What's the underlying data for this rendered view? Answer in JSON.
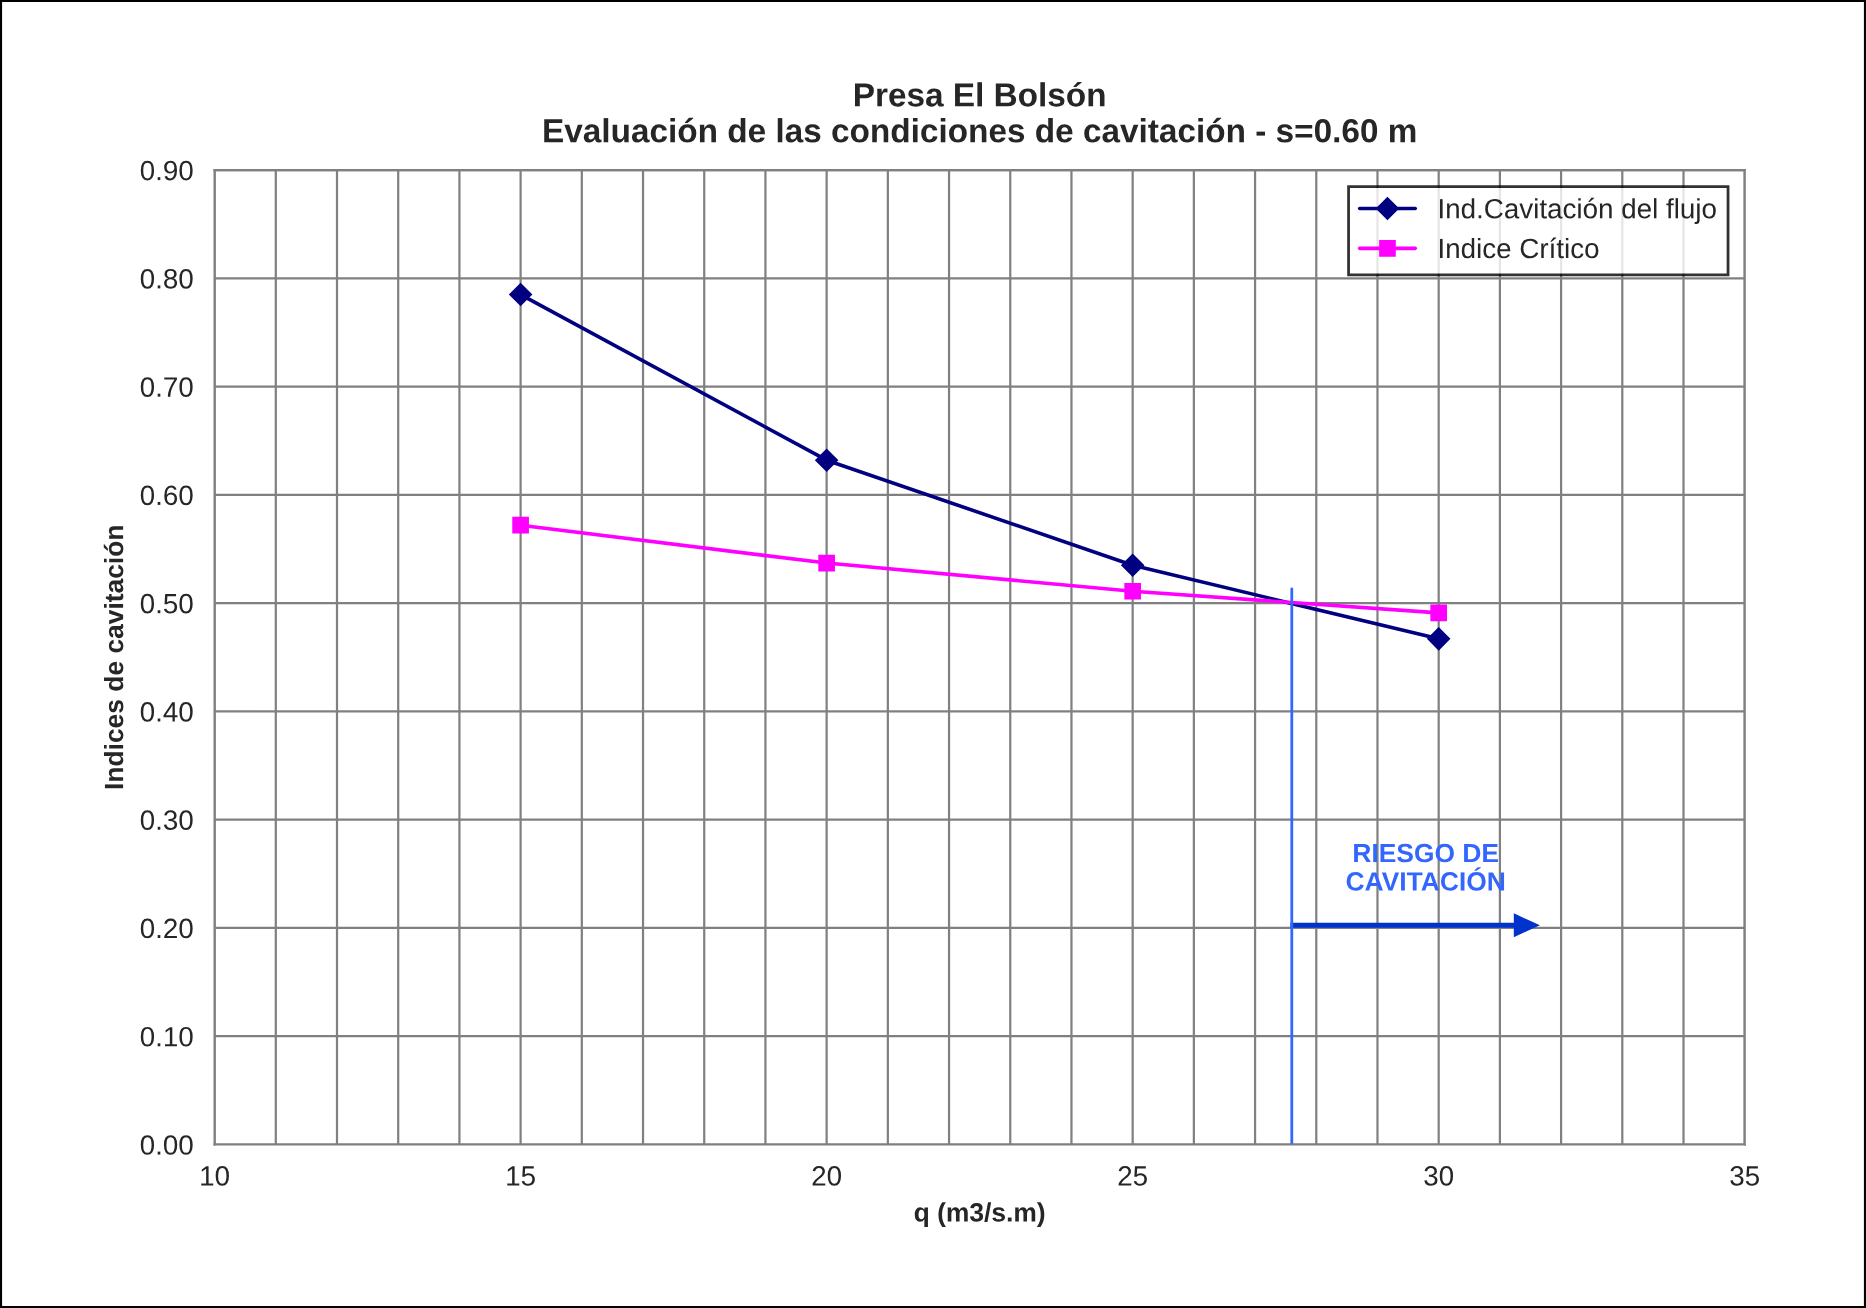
{
  "chart_data": {
    "type": "line",
    "title": "Presa El Bolsón\nEvaluación de las condiciones de cavitación - s=0.60 m",
    "xlabel": "q (m3/s.m)",
    "ylabel": "Indices de cavitación",
    "x": [
      15,
      20,
      25,
      30
    ],
    "series": [
      {
        "name": "Ind.Cavitación del flujo",
        "color": "#000080",
        "marker": "diamond",
        "values": [
          0.785,
          0.632,
          0.535,
          0.467
        ]
      },
      {
        "name": "Indice Crítico",
        "color": "#ff00ff",
        "marker": "square",
        "values": [
          0.572,
          0.537,
          0.511,
          0.491
        ]
      }
    ],
    "xlim": [
      10,
      35
    ],
    "xticks": [
      10,
      {
        "value": 11,
        "label": null
      },
      {
        "value": 12,
        "label": null
      },
      {
        "value": 13,
        "label": null
      },
      {
        "value": 14,
        "label": null
      },
      15,
      {
        "value": 16,
        "label": null
      },
      {
        "value": 17,
        "label": null
      },
      {
        "value": 18,
        "label": null
      },
      {
        "value": 19,
        "label": null
      },
      20,
      {
        "value": 21,
        "label": null
      },
      {
        "value": 22,
        "label": null
      },
      {
        "value": 23,
        "label": null
      },
      {
        "value": 24,
        "label": null
      },
      25,
      {
        "value": 26,
        "label": null
      },
      {
        "value": 27,
        "label": null
      },
      {
        "value": 28,
        "label": null
      },
      {
        "value": 29,
        "label": null
      },
      30,
      {
        "value": 31,
        "label": null
      },
      {
        "value": 32,
        "label": null
      },
      {
        "value": 33,
        "label": null
      },
      {
        "value": 34,
        "label": null
      },
      35
    ],
    "ylim": [
      0,
      0.9
    ],
    "yticks": [
      {
        "value": 0,
        "label": "0.00"
      },
      {
        "value": 0.1,
        "label": "0.10"
      },
      {
        "value": 0.2,
        "label": "0.20"
      },
      {
        "value": 0.3,
        "label": "0.30"
      },
      {
        "value": 0.4,
        "label": "0.40"
      },
      {
        "value": 0.5,
        "label": "0.50"
      },
      {
        "value": 0.6,
        "label": "0.60"
      },
      {
        "value": 0.7,
        "label": "0.70"
      },
      {
        "value": 0.8,
        "label": "0.80"
      },
      {
        "value": 0.9,
        "label": "0.90"
      }
    ],
    "ref_lines": [
      {
        "axis": "x",
        "value": 27.6,
        "label": "RIESGO DE\nCAVITACIÓN",
        "color": "#3366ff"
      }
    ],
    "grid": true,
    "legend": "top right",
    "line_style": "solid"
  }
}
